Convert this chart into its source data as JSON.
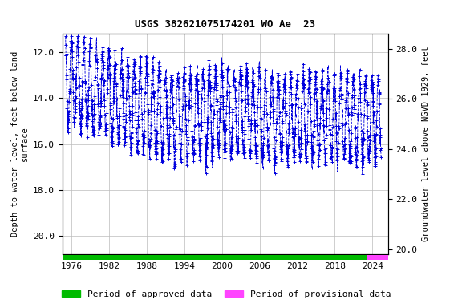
{
  "title": "USGS 382621075174201 WO Ae  23",
  "ylabel_left": "Depth to water level, feet below land\nsurface",
  "ylabel_right": "Groundwater level above NGVD 1929, feet",
  "xlim": [
    1974.5,
    2026.5
  ],
  "ylim_left": [
    20.8,
    11.2
  ],
  "ylim_right": [
    19.8,
    28.6
  ],
  "xticks": [
    1976,
    1982,
    1988,
    1994,
    2000,
    2006,
    2012,
    2018,
    2024
  ],
  "yticks_left": [
    12.0,
    14.0,
    16.0,
    18.0,
    20.0
  ],
  "yticks_right": [
    20.0,
    22.0,
    24.0,
    26.0,
    28.0
  ],
  "grid_color": "#bbbbbb",
  "data_color": "#0000dd",
  "approved_color": "#00bb00",
  "provisional_color": "#ff44ff",
  "approved_start": 1974.5,
  "approved_end": 2023.2,
  "provisional_start": 2023.2,
  "provisional_end": 2026.5,
  "title_fontsize": 9,
  "axis_fontsize": 7.5,
  "tick_fontsize": 8,
  "legend_fontsize": 8,
  "random_seed": 17
}
